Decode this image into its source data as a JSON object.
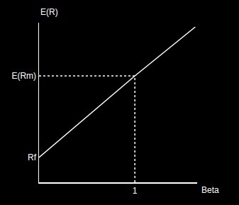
{
  "chart_data": {
    "type": "line",
    "x_label": "Beta",
    "y_label": "E(R)",
    "x": [
      0,
      1,
      1.63
    ],
    "values": [
      3.5,
      15,
      21.9
    ],
    "color": "#ffffff",
    "xlim": [
      0,
      1.65
    ],
    "xticks": [
      1
    ],
    "ylim": [
      0,
      22.5
    ],
    "yticks": [
      {
        "value": 3.5,
        "label": "Rf"
      },
      {
        "value": 15,
        "label": "E(Rm)"
      }
    ],
    "grid": false
  }
}
